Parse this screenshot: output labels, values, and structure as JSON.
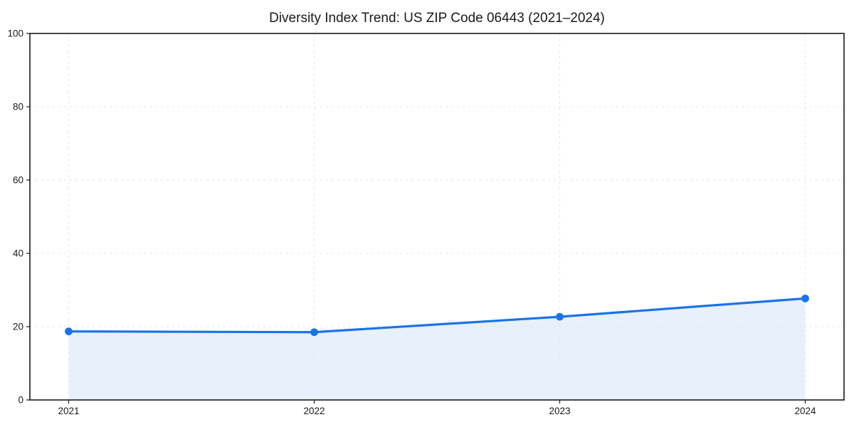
{
  "chart_data": {
    "type": "area",
    "title": "Diversity Index Trend: US ZIP Code 06443 (2021–2024)",
    "categories": [
      "2021",
      "2022",
      "2023",
      "2024"
    ],
    "series": [
      {
        "name": "Diversity Index",
        "values": [
          18.7,
          18.5,
          22.7,
          27.7
        ]
      }
    ],
    "xlabel": "",
    "ylabel": "",
    "ylim": [
      0,
      100
    ],
    "yticks": [
      0,
      20,
      40,
      60,
      80,
      100
    ],
    "grid": "dashed",
    "legend_position": "none",
    "colors": {
      "line": "#1a73e8",
      "marker": "#1a73e8",
      "area_fill": "#e8f0fc",
      "grid": "#e4e4e4",
      "axis": "#1a1a1a",
      "text": "#1a1a1a",
      "background": "#ffffff"
    }
  }
}
